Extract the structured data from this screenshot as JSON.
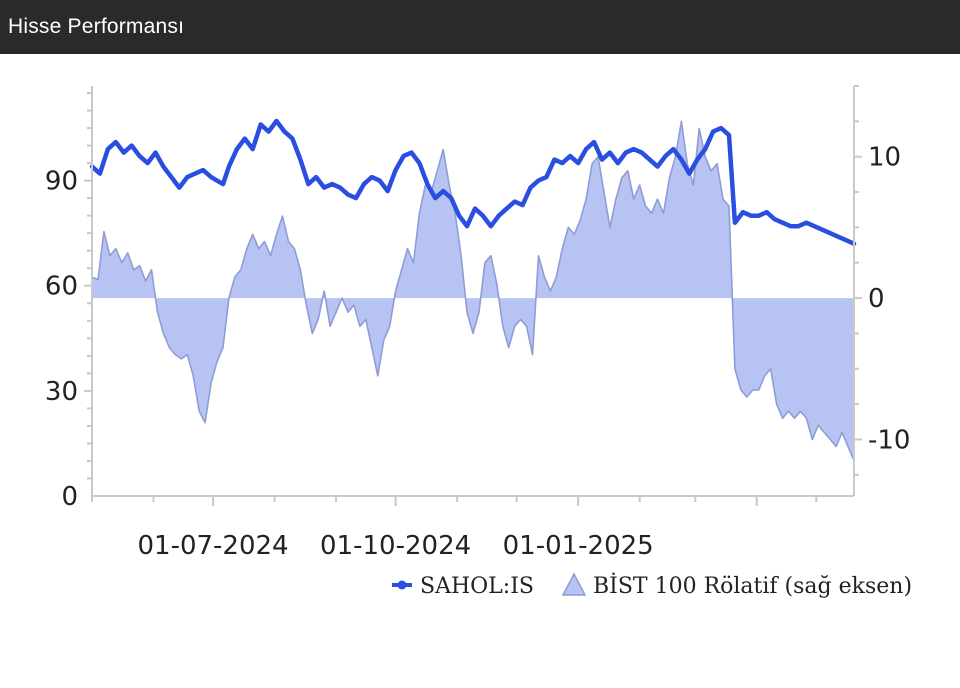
{
  "header": {
    "title": "Hisse Performansı"
  },
  "chart_data": {
    "type": "line",
    "title": "",
    "xlabel": "",
    "ylabel": "",
    "x_range": [
      "2024-05-01",
      "2025-05-20"
    ],
    "ylim": [
      0,
      117
    ],
    "y2lim": [
      -14,
      15
    ],
    "x_ticks": [
      "01-07-2024",
      "01-10-2024",
      "01-01-2025"
    ],
    "y_ticks": [
      0,
      30,
      60,
      90
    ],
    "y2_ticks": [
      -10,
      0,
      10
    ],
    "grid": false,
    "legend_position": "bottom-right",
    "series": [
      {
        "name": "SAHOL:IS",
        "type": "line",
        "axis": "left",
        "color": "#2a4fe0",
        "points": [
          [
            "2024-05-01",
            94
          ],
          [
            "2024-05-05",
            92
          ],
          [
            "2024-05-09",
            99
          ],
          [
            "2024-05-13",
            101
          ],
          [
            "2024-05-17",
            98
          ],
          [
            "2024-05-21",
            100
          ],
          [
            "2024-05-25",
            97
          ],
          [
            "2024-05-29",
            95
          ],
          [
            "2024-06-02",
            98
          ],
          [
            "2024-06-06",
            94
          ],
          [
            "2024-06-10",
            91
          ],
          [
            "2024-06-14",
            88
          ],
          [
            "2024-06-18",
            91
          ],
          [
            "2024-06-22",
            92
          ],
          [
            "2024-06-26",
            93
          ],
          [
            "2024-06-30",
            91
          ],
          [
            "2024-07-03",
            90
          ],
          [
            "2024-07-06",
            89
          ],
          [
            "2024-07-09",
            94
          ],
          [
            "2024-07-13",
            99
          ],
          [
            "2024-07-17",
            102
          ],
          [
            "2024-07-21",
            99
          ],
          [
            "2024-07-25",
            106
          ],
          [
            "2024-07-29",
            104
          ],
          [
            "2024-08-02",
            107
          ],
          [
            "2024-08-06",
            104
          ],
          [
            "2024-08-10",
            102
          ],
          [
            "2024-08-14",
            96
          ],
          [
            "2024-08-18",
            89
          ],
          [
            "2024-08-22",
            91
          ],
          [
            "2024-08-26",
            88
          ],
          [
            "2024-08-30",
            89
          ],
          [
            "2024-09-03",
            88
          ],
          [
            "2024-09-07",
            86
          ],
          [
            "2024-09-11",
            85
          ],
          [
            "2024-09-15",
            89
          ],
          [
            "2024-09-19",
            91
          ],
          [
            "2024-09-23",
            90
          ],
          [
            "2024-09-27",
            87
          ],
          [
            "2024-10-01",
            93
          ],
          [
            "2024-10-05",
            97
          ],
          [
            "2024-10-09",
            98
          ],
          [
            "2024-10-13",
            95
          ],
          [
            "2024-10-17",
            89
          ],
          [
            "2024-10-21",
            85
          ],
          [
            "2024-10-25",
            87
          ],
          [
            "2024-10-29",
            85
          ],
          [
            "2024-11-02",
            80
          ],
          [
            "2024-11-06",
            77
          ],
          [
            "2024-11-10",
            82
          ],
          [
            "2024-11-14",
            80
          ],
          [
            "2024-11-18",
            77
          ],
          [
            "2024-11-22",
            80
          ],
          [
            "2024-11-26",
            82
          ],
          [
            "2024-11-30",
            84
          ],
          [
            "2024-12-04",
            83
          ],
          [
            "2024-12-08",
            88
          ],
          [
            "2024-12-12",
            90
          ],
          [
            "2024-12-16",
            91
          ],
          [
            "2024-12-20",
            96
          ],
          [
            "2024-12-24",
            95
          ],
          [
            "2024-12-28",
            97
          ],
          [
            "2025-01-01",
            95
          ],
          [
            "2025-01-05",
            99
          ],
          [
            "2025-01-09",
            101
          ],
          [
            "2025-01-13",
            96
          ],
          [
            "2025-01-17",
            98
          ],
          [
            "2025-01-21",
            95
          ],
          [
            "2025-01-25",
            98
          ],
          [
            "2025-01-29",
            99
          ],
          [
            "2025-02-02",
            98
          ],
          [
            "2025-02-06",
            96
          ],
          [
            "2025-02-10",
            94
          ],
          [
            "2025-02-14",
            97
          ],
          [
            "2025-02-18",
            99
          ],
          [
            "2025-02-22",
            96
          ],
          [
            "2025-02-26",
            92
          ],
          [
            "2025-03-02",
            96
          ],
          [
            "2025-03-06",
            99
          ],
          [
            "2025-03-10",
            104
          ],
          [
            "2025-03-14",
            105
          ],
          [
            "2025-03-18",
            103
          ],
          [
            "2025-03-21",
            78
          ],
          [
            "2025-03-25",
            81
          ],
          [
            "2025-03-29",
            80
          ],
          [
            "2025-04-02",
            80
          ],
          [
            "2025-04-06",
            81
          ],
          [
            "2025-04-10",
            79
          ],
          [
            "2025-04-14",
            78
          ],
          [
            "2025-04-18",
            77
          ],
          [
            "2025-04-22",
            77
          ],
          [
            "2025-04-26",
            78
          ],
          [
            "2025-04-30",
            77
          ],
          [
            "2025-05-04",
            76
          ],
          [
            "2025-05-08",
            75
          ],
          [
            "2025-05-12",
            74
          ],
          [
            "2025-05-16",
            73
          ],
          [
            "2025-05-20",
            72
          ]
        ]
      },
      {
        "name": "BİST 100 Rölatif (sağ eksen)",
        "type": "area",
        "axis": "right",
        "color": "#b7c3f2",
        "line_color": "#8f9cd6",
        "points": [
          [
            "2024-05-01",
            1.5
          ],
          [
            "2024-05-04",
            1.3
          ],
          [
            "2024-05-07",
            4.7
          ],
          [
            "2024-05-10",
            3.0
          ],
          [
            "2024-05-13",
            3.5
          ],
          [
            "2024-05-16",
            2.5
          ],
          [
            "2024-05-19",
            3.2
          ],
          [
            "2024-05-22",
            2.0
          ],
          [
            "2024-05-25",
            2.3
          ],
          [
            "2024-05-28",
            1.2
          ],
          [
            "2024-05-31",
            2.0
          ],
          [
            "2024-06-03",
            -1.0
          ],
          [
            "2024-06-06",
            -2.5
          ],
          [
            "2024-06-09",
            -3.5
          ],
          [
            "2024-06-12",
            -4.0
          ],
          [
            "2024-06-15",
            -4.3
          ],
          [
            "2024-06-18",
            -4.0
          ],
          [
            "2024-06-21",
            -5.5
          ],
          [
            "2024-06-24",
            -8.0
          ],
          [
            "2024-06-27",
            -8.8
          ],
          [
            "2024-06-30",
            -6.0
          ],
          [
            "2024-07-03",
            -4.5
          ],
          [
            "2024-07-06",
            -3.5
          ],
          [
            "2024-07-09",
            0.0
          ],
          [
            "2024-07-12",
            1.5
          ],
          [
            "2024-07-15",
            2.0
          ],
          [
            "2024-07-18",
            3.5
          ],
          [
            "2024-07-21",
            4.5
          ],
          [
            "2024-07-24",
            3.5
          ],
          [
            "2024-07-27",
            4.0
          ],
          [
            "2024-07-30",
            3.0
          ],
          [
            "2024-08-02",
            4.5
          ],
          [
            "2024-08-05",
            5.8
          ],
          [
            "2024-08-08",
            4.0
          ],
          [
            "2024-08-11",
            3.5
          ],
          [
            "2024-08-14",
            2.0
          ],
          [
            "2024-08-17",
            -0.5
          ],
          [
            "2024-08-20",
            -2.5
          ],
          [
            "2024-08-23",
            -1.5
          ],
          [
            "2024-08-26",
            0.5
          ],
          [
            "2024-08-29",
            -2.0
          ],
          [
            "2024-09-01",
            -1.0
          ],
          [
            "2024-09-04",
            0.0
          ],
          [
            "2024-09-07",
            -1.0
          ],
          [
            "2024-09-10",
            -0.5
          ],
          [
            "2024-09-13",
            -2.0
          ],
          [
            "2024-09-16",
            -1.5
          ],
          [
            "2024-09-19",
            -3.5
          ],
          [
            "2024-09-22",
            -5.5
          ],
          [
            "2024-09-25",
            -3.0
          ],
          [
            "2024-09-28",
            -2.0
          ],
          [
            "2024-10-01",
            0.5
          ],
          [
            "2024-10-04",
            2.0
          ],
          [
            "2024-10-07",
            3.5
          ],
          [
            "2024-10-10",
            2.5
          ],
          [
            "2024-10-13",
            6.0
          ],
          [
            "2024-10-16",
            8.0
          ],
          [
            "2024-10-19",
            7.5
          ],
          [
            "2024-10-22",
            9.0
          ],
          [
            "2024-10-25",
            10.5
          ],
          [
            "2024-10-28",
            8.0
          ],
          [
            "2024-10-31",
            6.0
          ],
          [
            "2024-11-03",
            3.0
          ],
          [
            "2024-11-06",
            -1.0
          ],
          [
            "2024-11-09",
            -2.5
          ],
          [
            "2024-11-12",
            -1.0
          ],
          [
            "2024-11-15",
            2.5
          ],
          [
            "2024-11-18",
            3.0
          ],
          [
            "2024-11-21",
            1.0
          ],
          [
            "2024-11-24",
            -2.0
          ],
          [
            "2024-11-27",
            -3.5
          ],
          [
            "2024-11-30",
            -2.0
          ],
          [
            "2024-12-03",
            -1.5
          ],
          [
            "2024-12-06",
            -2.0
          ],
          [
            "2024-12-09",
            -4.0
          ],
          [
            "2024-12-12",
            3.0
          ],
          [
            "2024-12-15",
            1.5
          ],
          [
            "2024-12-18",
            0.5
          ],
          [
            "2024-12-21",
            1.5
          ],
          [
            "2024-12-24",
            3.5
          ],
          [
            "2024-12-27",
            5.0
          ],
          [
            "2024-12-30",
            4.5
          ],
          [
            "2025-01-02",
            5.5
          ],
          [
            "2025-01-05",
            7.0
          ],
          [
            "2025-01-08",
            9.5
          ],
          [
            "2025-01-11",
            10.0
          ],
          [
            "2025-01-14",
            7.5
          ],
          [
            "2025-01-17",
            5.0
          ],
          [
            "2025-01-20",
            7.0
          ],
          [
            "2025-01-23",
            8.5
          ],
          [
            "2025-01-26",
            9.0
          ],
          [
            "2025-01-29",
            7.0
          ],
          [
            "2025-02-01",
            8.0
          ],
          [
            "2025-02-04",
            6.5
          ],
          [
            "2025-02-07",
            6.0
          ],
          [
            "2025-02-10",
            7.0
          ],
          [
            "2025-02-13",
            6.0
          ],
          [
            "2025-02-16",
            8.5
          ],
          [
            "2025-02-19",
            10.0
          ],
          [
            "2025-02-22",
            12.5
          ],
          [
            "2025-02-25",
            9.5
          ],
          [
            "2025-02-28",
            8.0
          ],
          [
            "2025-03-03",
            12.0
          ],
          [
            "2025-03-06",
            10.0
          ],
          [
            "2025-03-09",
            9.0
          ],
          [
            "2025-03-12",
            9.5
          ],
          [
            "2025-03-15",
            7.0
          ],
          [
            "2025-03-18",
            6.5
          ],
          [
            "2025-03-21",
            -5.0
          ],
          [
            "2025-03-24",
            -6.5
          ],
          [
            "2025-03-27",
            -7.0
          ],
          [
            "2025-03-30",
            -6.5
          ],
          [
            "2025-04-02",
            -6.5
          ],
          [
            "2025-04-05",
            -5.5
          ],
          [
            "2025-04-08",
            -5.0
          ],
          [
            "2025-04-11",
            -7.5
          ],
          [
            "2025-04-14",
            -8.5
          ],
          [
            "2025-04-17",
            -8.0
          ],
          [
            "2025-04-20",
            -8.5
          ],
          [
            "2025-04-23",
            -8.0
          ],
          [
            "2025-04-26",
            -8.5
          ],
          [
            "2025-04-29",
            -10.0
          ],
          [
            "2025-05-02",
            -9.0
          ],
          [
            "2025-05-05",
            -9.5
          ],
          [
            "2025-05-08",
            -10.0
          ],
          [
            "2025-05-11",
            -10.5
          ],
          [
            "2025-05-14",
            -9.5
          ],
          [
            "2025-05-17",
            -10.5
          ],
          [
            "2025-05-20",
            -11.5
          ]
        ]
      }
    ]
  }
}
